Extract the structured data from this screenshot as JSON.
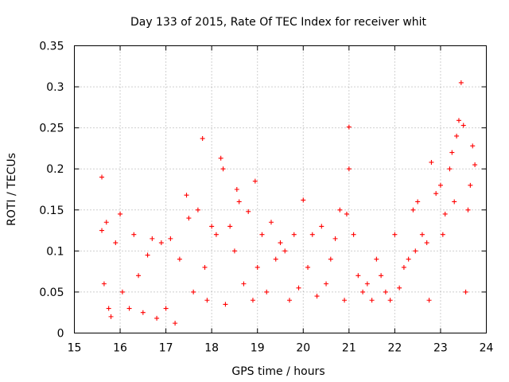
{
  "chart_data": {
    "type": "scatter",
    "title": "Day 133 of 2015, Rate Of TEC Index for receiver whit",
    "xlabel": "GPS time / hours",
    "ylabel": "ROTI / TECUs",
    "xlim": [
      15,
      24
    ],
    "ylim": [
      0,
      0.35
    ],
    "x_ticks": [
      15,
      16,
      17,
      18,
      19,
      20,
      21,
      22,
      23,
      24
    ],
    "x_tick_labels": [
      "15",
      "16",
      "17",
      "18",
      "19",
      "20",
      "21",
      "22",
      "23",
      "24"
    ],
    "y_ticks": [
      0,
      0.05,
      0.1,
      0.15,
      0.2,
      0.25,
      0.3,
      0.35
    ],
    "y_tick_labels": [
      "0",
      "0.05",
      "0.1",
      "0.15",
      "0.2",
      "0.25",
      "0.3",
      "0.35"
    ],
    "grid": true,
    "marker": "+",
    "series": [
      {
        "name": "ROTI",
        "color": "#ff0000",
        "x": [
          15.6,
          15.6,
          15.65,
          15.7,
          15.75,
          15.8,
          15.9,
          16.0,
          16.05,
          16.2,
          16.3,
          16.4,
          16.5,
          16.6,
          16.7,
          16.8,
          16.9,
          17.0,
          17.1,
          17.2,
          17.3,
          17.45,
          17.5,
          17.6,
          17.7,
          17.8,
          17.85,
          17.9,
          18.0,
          18.1,
          18.2,
          18.25,
          18.3,
          18.4,
          18.5,
          18.55,
          18.6,
          18.7,
          18.8,
          18.9,
          18.95,
          19.0,
          19.1,
          19.2,
          19.3,
          19.4,
          19.5,
          19.6,
          19.7,
          19.8,
          19.9,
          20.0,
          20.1,
          20.2,
          20.3,
          20.4,
          20.5,
          20.6,
          20.7,
          20.8,
          20.9,
          20.95,
          21.0,
          21.0,
          21.1,
          21.2,
          21.3,
          21.4,
          21.5,
          21.6,
          21.7,
          21.8,
          21.9,
          22.0,
          22.1,
          22.2,
          22.3,
          22.4,
          22.45,
          22.5,
          22.6,
          22.7,
          22.75,
          22.8,
          22.9,
          23.0,
          23.05,
          23.1,
          23.2,
          23.25,
          23.3,
          23.35,
          23.4,
          23.45,
          23.5,
          23.55,
          23.6,
          23.65,
          23.7,
          23.75
        ],
        "y": [
          0.19,
          0.125,
          0.06,
          0.135,
          0.03,
          0.02,
          0.11,
          0.145,
          0.05,
          0.03,
          0.12,
          0.07,
          0.025,
          0.095,
          0.115,
          0.018,
          0.11,
          0.03,
          0.115,
          0.012,
          0.09,
          0.168,
          0.14,
          0.05,
          0.15,
          0.237,
          0.08,
          0.04,
          0.13,
          0.12,
          0.213,
          0.2,
          0.035,
          0.13,
          0.1,
          0.175,
          0.16,
          0.06,
          0.148,
          0.04,
          0.185,
          0.08,
          0.12,
          0.05,
          0.135,
          0.09,
          0.11,
          0.1,
          0.04,
          0.12,
          0.055,
          0.162,
          0.08,
          0.12,
          0.045,
          0.13,
          0.06,
          0.09,
          0.115,
          0.15,
          0.04,
          0.145,
          0.251,
          0.2,
          0.12,
          0.07,
          0.05,
          0.06,
          0.04,
          0.09,
          0.07,
          0.05,
          0.04,
          0.12,
          0.055,
          0.08,
          0.09,
          0.15,
          0.1,
          0.16,
          0.12,
          0.11,
          0.04,
          0.208,
          0.17,
          0.18,
          0.12,
          0.145,
          0.2,
          0.22,
          0.16,
          0.24,
          0.259,
          0.305,
          0.253,
          0.05,
          0.15,
          0.18,
          0.228,
          0.205
        ]
      }
    ]
  }
}
